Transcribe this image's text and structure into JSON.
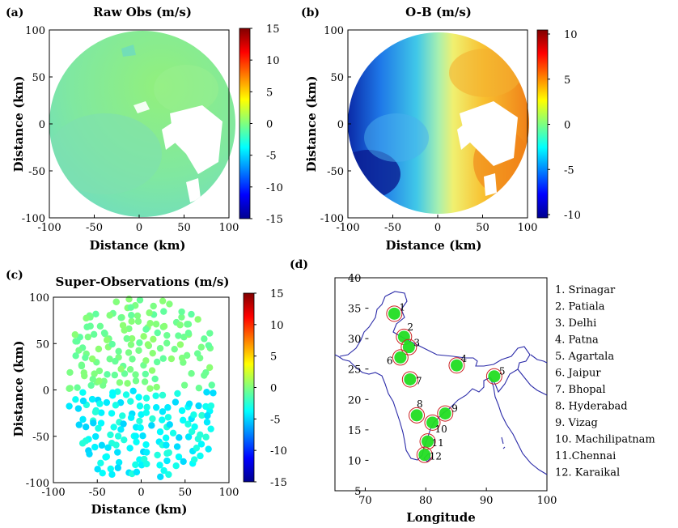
{
  "panels": [
    {
      "label": "(a)"
    },
    {
      "label": "(b)"
    },
    {
      "label": "(c)"
    },
    {
      "label": "(d)"
    }
  ],
  "chart_data": [
    {
      "type": "heatmap",
      "title": "Raw Obs (m/s)",
      "xlabel": "Distance (km)",
      "ylabel": "Distance (km)",
      "xlim": [
        -100,
        100
      ],
      "ylim": [
        -100,
        100
      ],
      "xticks": [
        "-100",
        "-50",
        "0",
        "50",
        "100"
      ],
      "yticks": [
        "100",
        "50",
        "0",
        "-50",
        "-100"
      ],
      "colorbar": {
        "range": [
          -15,
          15
        ],
        "ticks": [
          "15",
          "10",
          "5",
          "0",
          "-5",
          "-10",
          "-15"
        ]
      },
      "typical_value_range": [
        -5,
        1
      ],
      "colormap": "jet"
    },
    {
      "type": "heatmap",
      "title": "O-B (m/s)",
      "xlabel": "Distance (km)",
      "ylabel": "Distance (km)",
      "xlim": [
        -100,
        100
      ],
      "ylim": [
        -100,
        100
      ],
      "xticks": [
        "-100",
        "-50",
        "0",
        "50",
        "100"
      ],
      "yticks": [
        "100",
        "50",
        "0",
        "-50",
        "-100"
      ],
      "colorbar": {
        "range": [
          -10,
          10
        ],
        "ticks": [
          "10",
          "5",
          "0",
          "-5",
          "-10"
        ]
      },
      "typical_value_range": [
        -9,
        8
      ],
      "colormap": "jet"
    },
    {
      "type": "scatter",
      "title": "Super-Observations (m/s)",
      "xlabel": "Distance (km)",
      "ylabel": "Distance (km)",
      "xlim": [
        -100,
        100
      ],
      "ylim": [
        -100,
        100
      ],
      "xticks": [
        "-100",
        "-50",
        "0",
        "50",
        "100"
      ],
      "yticks": [
        "100",
        "50",
        "0",
        "-50",
        "-100"
      ],
      "colorbar": {
        "range": [
          -15,
          15
        ],
        "ticks": [
          "15",
          "10",
          "5",
          "0",
          "-5",
          "-10",
          "-15"
        ]
      },
      "typical_value_range": [
        -5,
        2
      ],
      "colormap": "jet"
    },
    {
      "type": "scatter",
      "title": "",
      "xlabel": "Longitude",
      "ylabel": "",
      "xlim": [
        65,
        100
      ],
      "ylim": [
        5,
        40
      ],
      "xticks": [
        "70",
        "80",
        "90",
        "100"
      ],
      "yticks": [
        "40",
        "35",
        "30",
        "25",
        "20",
        "15",
        "10",
        "5"
      ],
      "stations": [
        {
          "num": "1",
          "legend": "1. Srinagar",
          "lon": 74.8,
          "lat": 34.1
        },
        {
          "num": "2",
          "legend": "2. Patiala",
          "lon": 76.4,
          "lat": 30.3
        },
        {
          "num": "3",
          "legend": "3. Delhi",
          "lon": 77.2,
          "lat": 28.6
        },
        {
          "num": "4",
          "legend": "4. Patna",
          "lon": 85.1,
          "lat": 25.6
        },
        {
          "num": "5",
          "legend": "5. Agartala",
          "lon": 91.3,
          "lat": 23.8
        },
        {
          "num": "6",
          "legend": "6. Jaipur",
          "lon": 75.8,
          "lat": 26.9
        },
        {
          "num": "7",
          "legend": "7. Bhopal",
          "lon": 77.4,
          "lat": 23.3
        },
        {
          "num": "8",
          "legend": "8. Hyderabad",
          "lon": 78.5,
          "lat": 17.4
        },
        {
          "num": "9",
          "legend": "9. Vizag",
          "lon": 83.2,
          "lat": 17.7
        },
        {
          "num": "10",
          "legend": "10. Machilipatnam",
          "lon": 81.1,
          "lat": 16.2
        },
        {
          "num": "11",
          "legend": "11.Chennai",
          "lon": 80.3,
          "lat": 13.1
        },
        {
          "num": "12",
          "legend": "12. Karaikal",
          "lon": 79.8,
          "lat": 10.9
        }
      ],
      "colors": {
        "marker_fill": "#22dd22",
        "ring": "#cc2222",
        "coast": "#2a2aa8"
      }
    }
  ]
}
